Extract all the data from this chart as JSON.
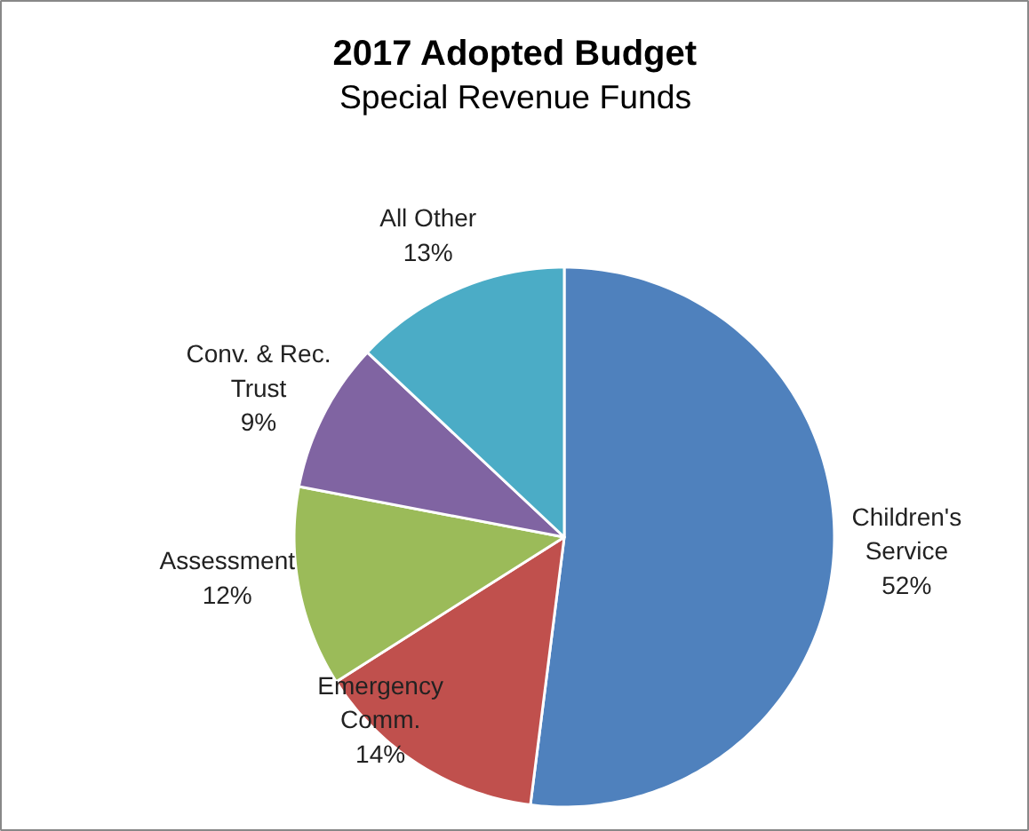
{
  "chart_data": {
    "type": "pie",
    "title": "2017 Adopted Budget",
    "subtitle": "Special Revenue Funds",
    "categories": [
      "Children's\nService",
      "Emergency\nComm.",
      "Assessment",
      "Conv. & Rec.\nTrust",
      "All Other"
    ],
    "values": [
      52,
      14,
      12,
      9,
      13
    ],
    "value_labels": [
      "52%",
      "14%",
      "12%",
      "9%",
      "13%"
    ],
    "colors": [
      "#4f81bd",
      "#c0504d",
      "#9bbb59",
      "#8064a2",
      "#4bacc6"
    ],
    "legend": false
  }
}
